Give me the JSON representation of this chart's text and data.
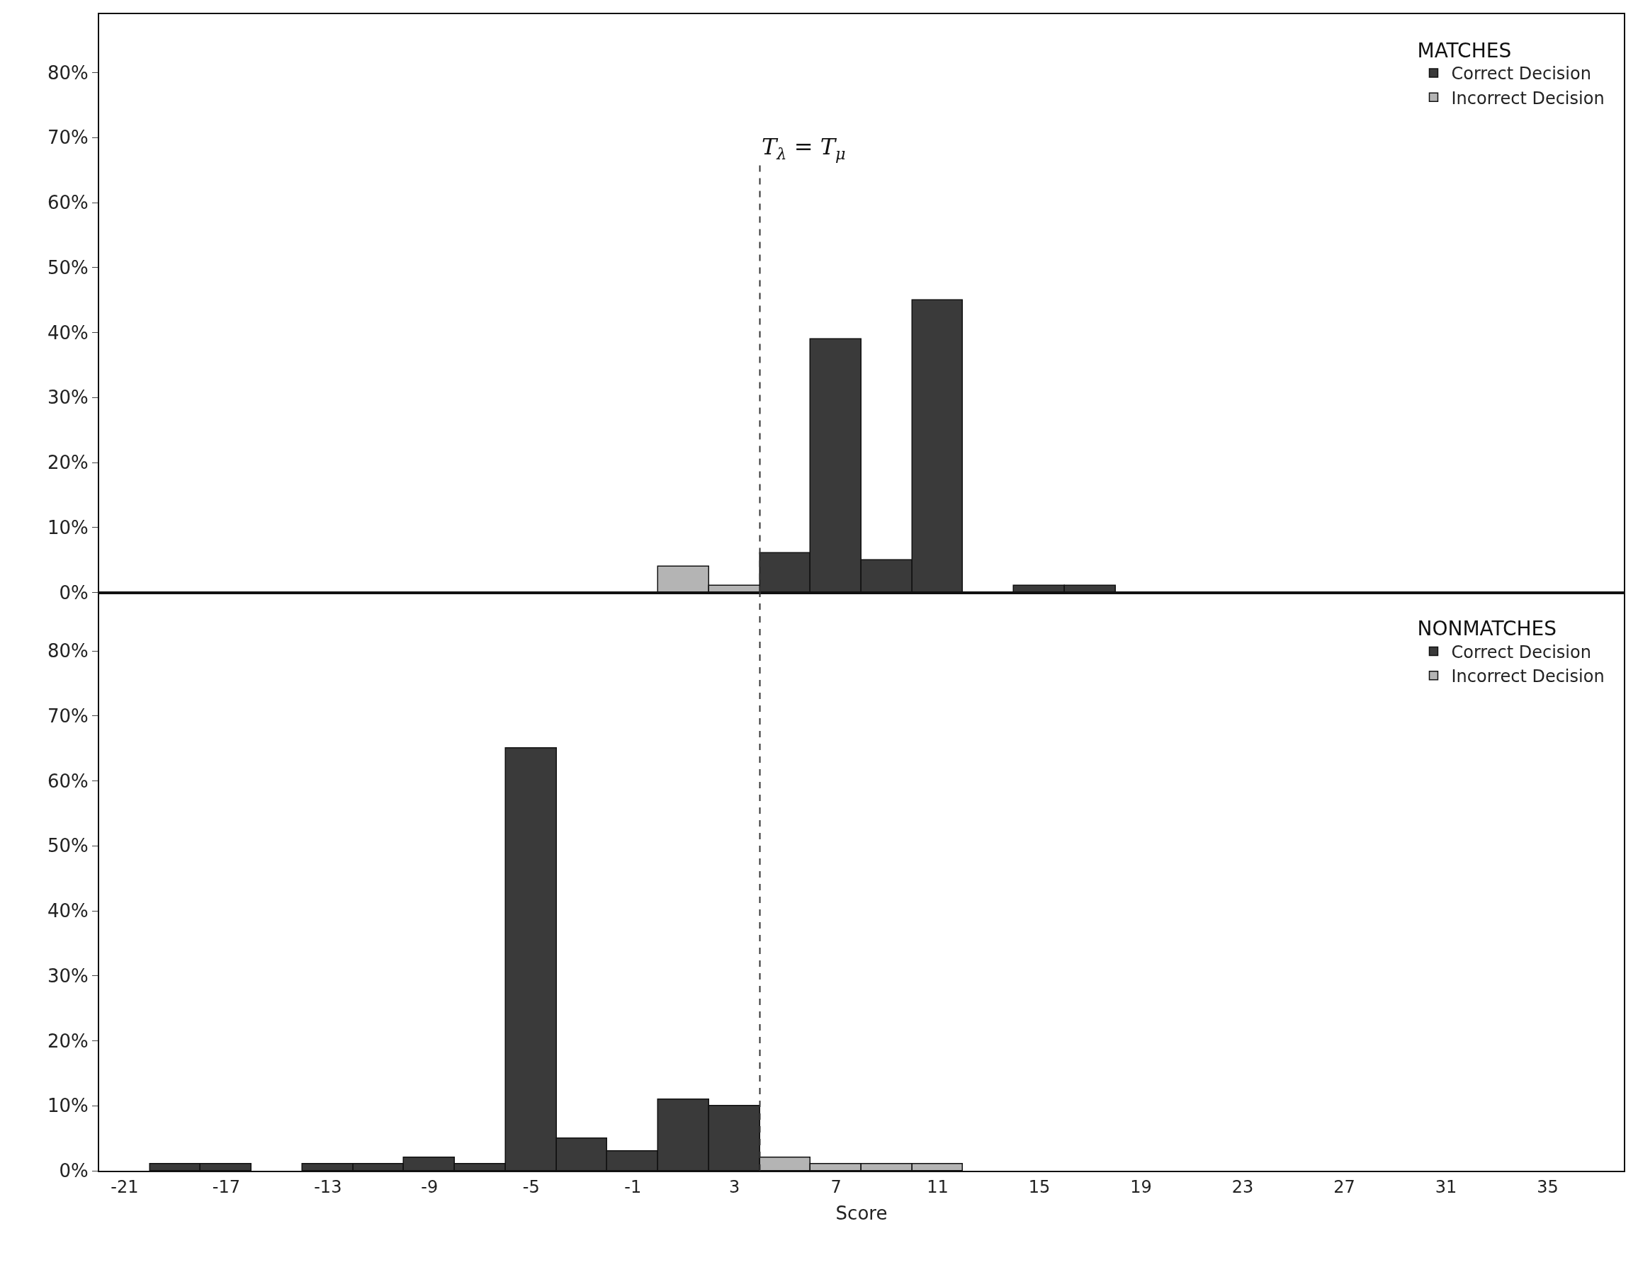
{
  "chart_data": [
    {
      "type": "bar",
      "legend_title": "MATCHES",
      "xlim": [
        -22,
        38
      ],
      "ylim": [
        0,
        89
      ],
      "tick_labels": "y",
      "grid": false,
      "legend": "top right",
      "xticks": [
        -21,
        -17,
        -13,
        -9,
        -5,
        -1,
        3,
        7,
        11,
        15,
        19,
        23,
        27,
        31,
        35
      ],
      "yticks": [
        {
          "value": 0,
          "label": "0%"
        },
        {
          "value": 10,
          "label": "10%"
        },
        {
          "value": 20,
          "label": "20%"
        },
        {
          "value": 30,
          "label": "30%"
        },
        {
          "value": 40,
          "label": "40%"
        },
        {
          "value": 50,
          "label": "50%"
        },
        {
          "value": 60,
          "label": "60%"
        },
        {
          "value": 70,
          "label": "70%"
        },
        {
          "value": 80,
          "label": "80%"
        }
      ],
      "ref_lines": [
        {
          "axis": "x",
          "value": 4,
          "label": "T$_{λ}$ = T$_{μ}$",
          "line_style": "dashed",
          "color": "#333333"
        }
      ],
      "series": [
        {
          "name": "Correct Decision",
          "color": "#3a3a3a",
          "x": [
            5,
            7,
            9,
            11,
            15,
            17
          ],
          "values": [
            6,
            39,
            5,
            45,
            1,
            1
          ]
        },
        {
          "name": "Incorrect Decision",
          "color": "#b4b4b4",
          "x": [
            1,
            3
          ],
          "values": [
            4,
            1
          ]
        }
      ]
    },
    {
      "type": "bar",
      "legend_title": "NONMATCHES",
      "xlabel": "Score",
      "xlim": [
        -22,
        38
      ],
      "ylim": [
        0,
        89
      ],
      "grid": false,
      "legend": "top right",
      "xticks": [
        -21,
        -17,
        -13,
        -9,
        -5,
        -1,
        3,
        7,
        11,
        15,
        19,
        23,
        27,
        31,
        35
      ],
      "yticks": [
        {
          "value": 0,
          "label": "0%"
        },
        {
          "value": 10,
          "label": "10%"
        },
        {
          "value": 20,
          "label": "20%"
        },
        {
          "value": 30,
          "label": "30%"
        },
        {
          "value": 40,
          "label": "40%"
        },
        {
          "value": 50,
          "label": "50%"
        },
        {
          "value": 60,
          "label": "60%"
        },
        {
          "value": 70,
          "label": "70%"
        },
        {
          "value": 80,
          "label": "80%"
        }
      ],
      "ref_lines": [
        {
          "axis": "x",
          "value": 4,
          "line_style": "dashed",
          "color": "#333333"
        }
      ],
      "series": [
        {
          "name": "Correct Decision",
          "color": "#3a3a3a",
          "x": [
            -19,
            -17,
            -13,
            -11,
            -9,
            -7,
            -5,
            -3,
            -1,
            1,
            3
          ],
          "values": [
            1,
            1,
            1,
            1,
            2,
            1,
            65,
            5,
            3,
            11,
            10
          ]
        },
        {
          "name": "Incorrect Decision",
          "color": "#b4b4b4",
          "x": [
            5,
            7,
            9,
            11
          ],
          "values": [
            2,
            1,
            1,
            1
          ]
        }
      ]
    }
  ]
}
